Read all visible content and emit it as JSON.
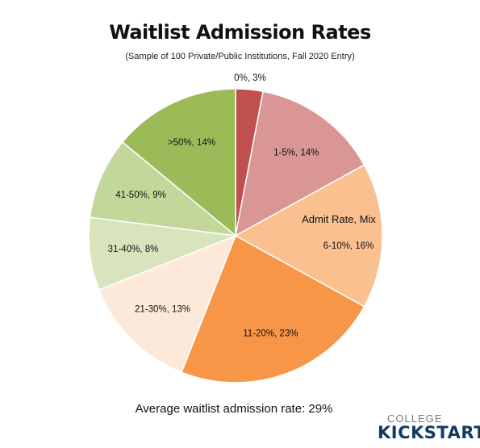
{
  "chart_data": {
    "type": "pie",
    "title": "Waitlist Admission Rates",
    "subtitle": "(Sample of 100 Private/Public Institutions, Fall 2020 Entry)",
    "slices": [
      {
        "label": "0%, 3%",
        "value": 3,
        "color": "#c0504d"
      },
      {
        "label": "1-5%, 14%",
        "value": 14,
        "color": "#da9694"
      },
      {
        "label": "6-10%, 16%",
        "value": 16,
        "color": "#fac090"
      },
      {
        "label": "11-20%, 23%",
        "value": 23,
        "color": "#f79646"
      },
      {
        "label": "21-30%, 13%",
        "value": 13,
        "color": "#fde9d9"
      },
      {
        "label": "31-40%, 8%",
        "value": 8,
        "color": "#d8e4bc"
      },
      {
        "label": "41-50%, 9%",
        "value": 9,
        "color": "#c4d79b"
      },
      {
        "label": ">50%, 14%",
        "value": 14,
        "color": "#9bbb59"
      }
    ],
    "annotation": "Admit Rate, Mix",
    "note": "Average waitlist admission rate: 29%"
  },
  "brand": {
    "line1": "COLLEGE",
    "line2": "KICKSTART"
  }
}
